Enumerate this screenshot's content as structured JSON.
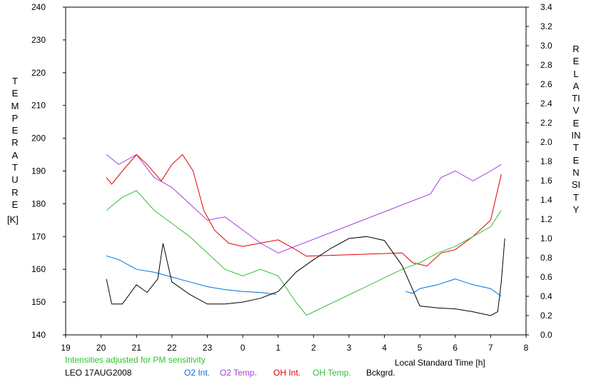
{
  "chart_data": {
    "type": "line",
    "left_axis": {
      "title": "TEMPERATURE",
      "unit": "[K]",
      "ticks": [
        "140",
        "150",
        "160",
        "170",
        "180",
        "190",
        "200",
        "210",
        "220",
        "230",
        "240"
      ],
      "range": [
        140,
        240
      ]
    },
    "right_axis": {
      "title": "RELATIVE INTENSITY",
      "ticks": [
        "0.0",
        "0.2",
        "0.4",
        "0.6",
        "0.8",
        "1.0",
        "1.2",
        "1.4",
        "1.6",
        "1.8",
        "2.0",
        "2.2",
        "2.4",
        "2.6",
        "2.8",
        "3.0",
        "3.2",
        "3.4"
      ],
      "range": [
        0.0,
        3.4
      ]
    },
    "x_axis": {
      "label": "Local Standard Time [h]",
      "ticks": [
        "19",
        "20",
        "21",
        "22",
        "23",
        "0",
        "1",
        "2",
        "3",
        "4",
        "5",
        "6",
        "7",
        "8"
      ],
      "range": [
        19,
        32
      ]
    },
    "series": [
      {
        "name": "O2 Int.",
        "color": "#0070e0",
        "axis": "right",
        "x": [
          20.15,
          20.5,
          21.0,
          21.5,
          22.0,
          22.5,
          23.0,
          23.5,
          24.0,
          24.5,
          24.95,
          25.0,
          25.1,
          28.6,
          28.8,
          29.0,
          29.5,
          30.0,
          30.5,
          31.0,
          31.3
        ],
        "y": [
          0.82,
          0.78,
          0.68,
          0.65,
          0.6,
          0.55,
          0.5,
          0.47,
          0.45,
          0.44,
          0.42,
          null,
          null,
          0.45,
          0.43,
          0.48,
          0.52,
          0.58,
          0.52,
          0.48,
          0.4
        ]
      },
      {
        "name": "O2 Temp.",
        "color": "#a040e0",
        "axis": "left",
        "x": [
          20.15,
          20.5,
          21.0,
          21.5,
          22.0,
          22.5,
          23.0,
          23.5,
          24.0,
          24.5,
          25.0,
          29.3,
          29.6,
          30.0,
          30.5,
          31.0,
          31.3
        ],
        "y": [
          195,
          192,
          195,
          188,
          185,
          180,
          175,
          176,
          172,
          168,
          165,
          183,
          188,
          190,
          187,
          190,
          192
        ]
      },
      {
        "name": "OH Int.",
        "color": "#e00000",
        "axis": "left",
        "x": [
          20.15,
          20.3,
          20.6,
          21.0,
          21.3,
          21.7,
          22.0,
          22.3,
          22.6,
          22.9,
          23.2,
          23.6,
          24.0,
          24.5,
          25.0,
          25.5,
          25.8,
          28.5,
          28.8,
          29.2,
          29.6,
          30.0,
          30.5,
          31.0,
          31.3
        ],
        "y": [
          188,
          186,
          190,
          195,
          192,
          187,
          192,
          195,
          190,
          178,
          172,
          168,
          167,
          168,
          169,
          166,
          164,
          165,
          162,
          161,
          165,
          166,
          170,
          175,
          189
        ]
      },
      {
        "name": "OH Temp.",
        "color": "#30c030",
        "axis": "left",
        "x": [
          20.15,
          20.6,
          21.0,
          21.5,
          22.0,
          22.5,
          23.0,
          23.5,
          24.0,
          24.5,
          25.0,
          25.5,
          25.8,
          28.5,
          29.0,
          29.5,
          30.0,
          30.5,
          31.0,
          31.3
        ],
        "y": [
          178,
          182,
          184,
          178,
          174,
          170,
          165,
          160,
          158,
          160,
          158,
          150,
          146,
          160,
          162,
          165,
          167,
          170,
          173,
          178
        ]
      },
      {
        "name": "Bckgrd.",
        "color": "#000000",
        "axis": "right",
        "x": [
          20.15,
          20.3,
          20.6,
          21.0,
          21.3,
          21.6,
          21.75,
          22.0,
          22.5,
          23.0,
          23.5,
          24.0,
          24.5,
          25.0,
          25.5,
          26.0,
          26.5,
          27.0,
          27.5,
          28.0,
          28.5,
          29.0,
          29.5,
          30.0,
          30.5,
          31.0,
          31.2,
          31.3,
          31.4
        ],
        "y": [
          0.58,
          0.32,
          0.32,
          0.52,
          0.44,
          0.58,
          0.95,
          0.55,
          0.42,
          0.32,
          0.32,
          0.34,
          0.38,
          0.45,
          0.65,
          0.78,
          0.9,
          1.0,
          1.02,
          0.98,
          0.72,
          0.3,
          0.28,
          0.27,
          0.24,
          0.2,
          0.24,
          0.55,
          1.0
        ]
      }
    ],
    "grid": false,
    "legend_position": "bottom"
  },
  "notes": {
    "adjusted": "Intensities adjusted for PM sensitivity",
    "station": "LEO 17AUG2008"
  }
}
